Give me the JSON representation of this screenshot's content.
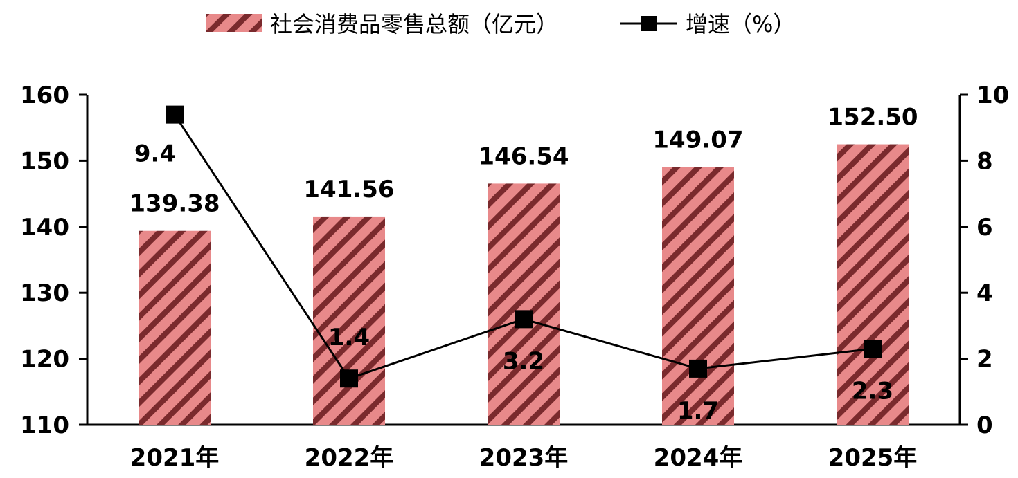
{
  "chart_data": {
    "type": "bar",
    "categories": [
      "2021年",
      "2022年",
      "2023年",
      "2024年",
      "2025年"
    ],
    "series": [
      {
        "name": "社会消费品零售总额（亿元）",
        "type": "bar",
        "axis": "left",
        "values": [
          139.38,
          141.56,
          146.54,
          149.07,
          152.5
        ],
        "labels": [
          "139.38",
          "141.56",
          "146.54",
          "149.07",
          "152.50"
        ],
        "color": "#e8898a",
        "stripe_color": "#7a2a2d"
      },
      {
        "name": "增速（%）",
        "type": "line",
        "axis": "right",
        "values": [
          9.4,
          1.4,
          3.2,
          1.7,
          2.3
        ],
        "labels": [
          "9.4",
          "1.4",
          "3.2",
          "1.7",
          "2.3"
        ],
        "color": "#000000"
      }
    ],
    "y_left": {
      "min": 110,
      "max": 160,
      "ticks": [
        110,
        120,
        130,
        140,
        150,
        160
      ]
    },
    "y_right": {
      "min": 0,
      "max": 10,
      "ticks": [
        0,
        2,
        4,
        6,
        8,
        10
      ]
    },
    "legend_position": "top-center",
    "grid": false
  }
}
